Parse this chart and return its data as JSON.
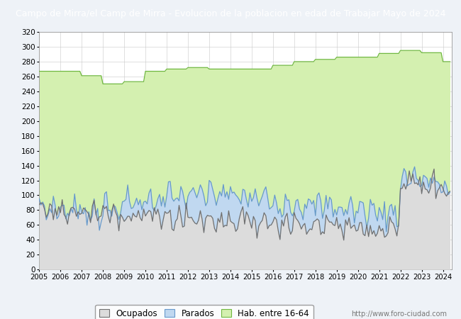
{
  "title": "Campo de Mirra/el Camp de Mirra - Evolucion de la poblacion en edad de Trabajar Mayo de 2024",
  "title_bg": "#4a90d9",
  "title_color": "white",
  "ylim": [
    0,
    320
  ],
  "yticks": [
    0,
    20,
    40,
    60,
    80,
    100,
    120,
    140,
    160,
    180,
    200,
    220,
    240,
    260,
    280,
    300,
    320
  ],
  "bg_color": "#eef2f7",
  "url_text": "http://www.foro-ciudad.com",
  "legend_labels": [
    "Ocupados",
    "Parados",
    "Hab. entre 16-64"
  ],
  "hab_fill": "#d4f0b0",
  "hab_line": "#70b840",
  "parados_fill": "#c0d8f0",
  "parados_line": "#6699cc",
  "ocupados_fill": "#dcdcdc",
  "ocupados_line": "#707070",
  "hab_yearly": [
    267,
    267,
    261,
    250,
    253,
    267,
    270,
    272,
    270,
    270,
    270,
    275,
    280,
    283,
    286,
    286,
    291,
    295,
    292,
    280
  ],
  "year_start": 2005
}
